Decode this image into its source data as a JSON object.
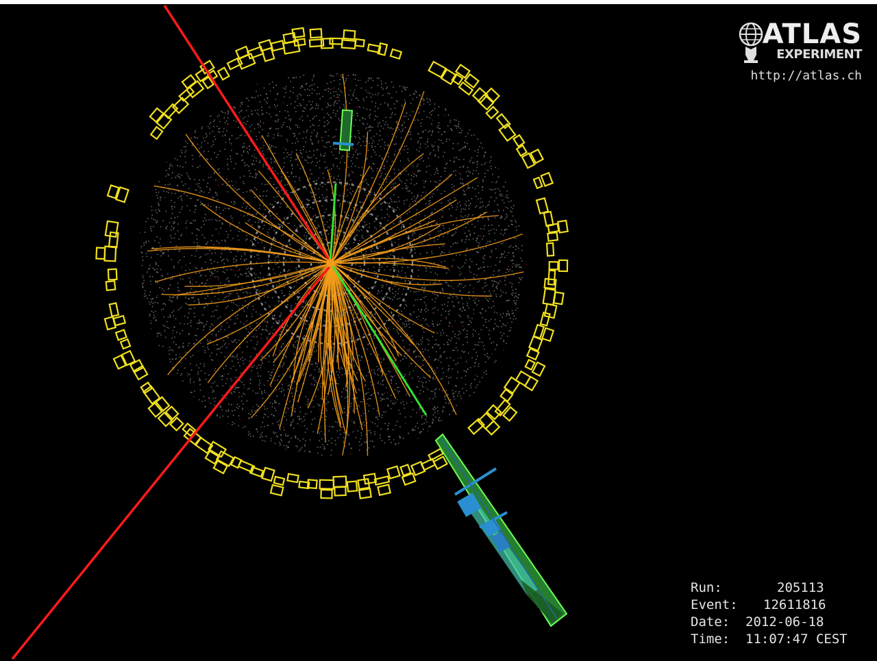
{
  "logo": {
    "title": "ATLAS",
    "subtitle": "EXPERIMENT",
    "url": "http://atlas.ch"
  },
  "event_info": {
    "run_label": "Run:",
    "run_value": "205113",
    "event_label": "Event:",
    "event_value": "12611816",
    "date_label": "Date:",
    "date_value": "2012-06-18",
    "time_label": "Time:",
    "time_value": "11:07:47 CEST"
  },
  "colors": {
    "background": "#000000",
    "calorimeter": "#f0e020",
    "tracks": "#f39c1a",
    "muon": "#ff1a1a",
    "electron": "#33dd33",
    "em_tower": "#33cc55",
    "had_tower": "#2288cc",
    "hits": "#8a8a8a"
  },
  "icons": {
    "logo": "atlas-globe-icon"
  }
}
